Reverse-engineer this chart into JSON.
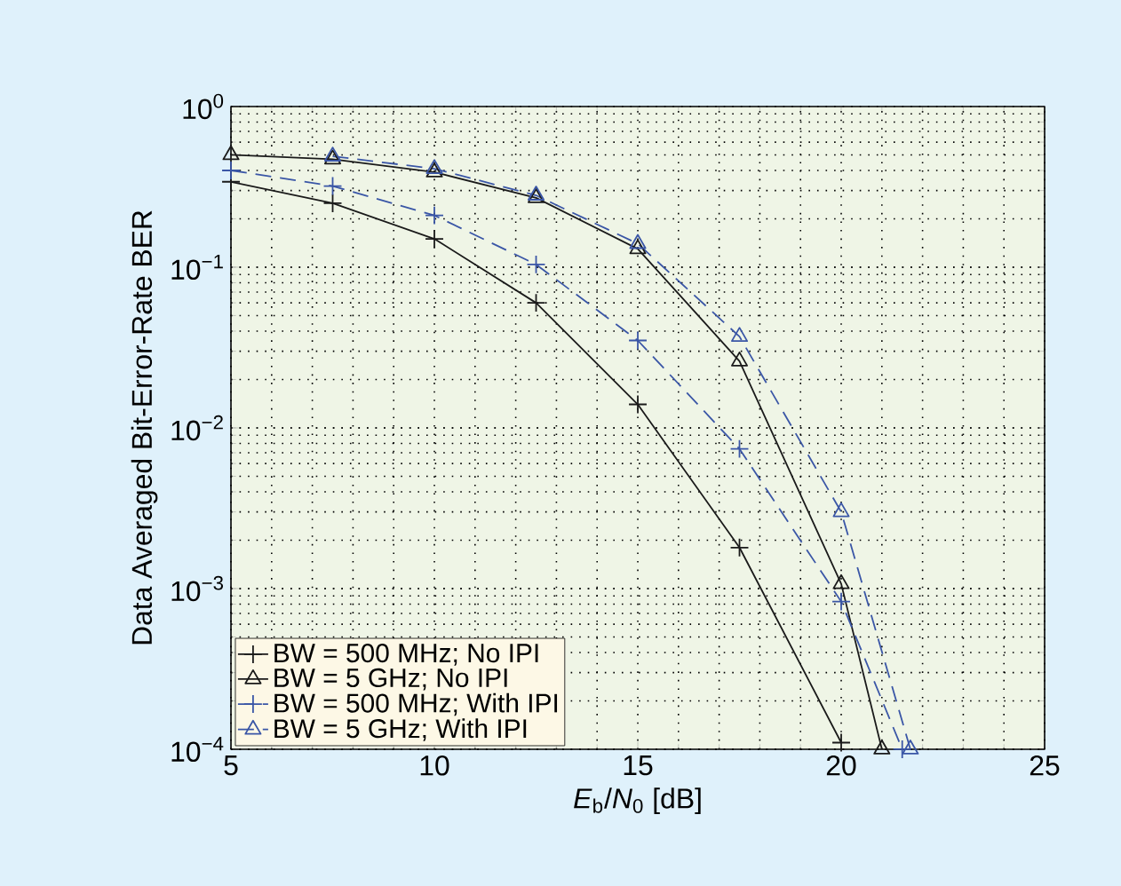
{
  "chart_data": {
    "type": "line",
    "xlabel": "*E*$_{b}$/*N*$_{0}$ [dB]",
    "ylabel": "Data Averaged Bit-Error-Rate BER",
    "log": "y",
    "grid": true,
    "legend": "bottom left",
    "xlim": [
      5,
      25
    ],
    "xticks": [
      5,
      10,
      15,
      20,
      25
    ],
    "ylim": [
      0.0001,
      1
    ],
    "yticks": [
      {
        "value": 0.0001,
        "label": "10$^{−4}$"
      },
      {
        "value": 0.001,
        "label": "10$^{−3}$"
      },
      {
        "value": 0.01,
        "label": "10$^{−2}$"
      },
      {
        "value": 0.1,
        "label": "10$^{−1}$"
      },
      {
        "value": 1,
        "label": "10$^{0}$"
      }
    ],
    "series": [
      {
        "name": "BW = 500 MHz; No IPI",
        "color": "#1a1a1a",
        "marker": "cross",
        "line_style": "solid",
        "x": [
          5,
          7.5,
          10,
          12.5,
          15,
          17.5,
          20
        ],
        "values": [
          0.34,
          0.25,
          0.15,
          0.06,
          0.014,
          0.0018,
          0.00011
        ]
      },
      {
        "name": "BW = 5 GHz; No IPI",
        "color": "#1a1a1a",
        "marker": "triangle",
        "line_style": "solid",
        "x": [
          5,
          7.5,
          10,
          12.5,
          15,
          17.5,
          20,
          21
        ],
        "values": [
          0.5,
          0.47,
          0.39,
          0.27,
          0.13,
          0.026,
          0.00107,
          0.0001
        ]
      },
      {
        "name": "BW = 500 MHz; With IPI",
        "color": "#3a56a6",
        "marker": "cross",
        "line_style": "dashed",
        "x": [
          5,
          7.5,
          10,
          12.5,
          15,
          17.5,
          20,
          21.5
        ],
        "values": [
          0.4,
          0.32,
          0.21,
          0.104,
          0.035,
          0.0074,
          0.00083,
          0.0001
        ]
      },
      {
        "name": "BW = 5 GHz; With IPI",
        "color": "#3a56a6",
        "marker": "triangle",
        "line_style": "dashed",
        "x": [
          7.5,
          10,
          12.5,
          15,
          17.5,
          20,
          21.7
        ],
        "values": [
          0.49,
          0.41,
          0.28,
          0.14,
          0.037,
          0.003,
          0.0001
        ]
      }
    ]
  }
}
